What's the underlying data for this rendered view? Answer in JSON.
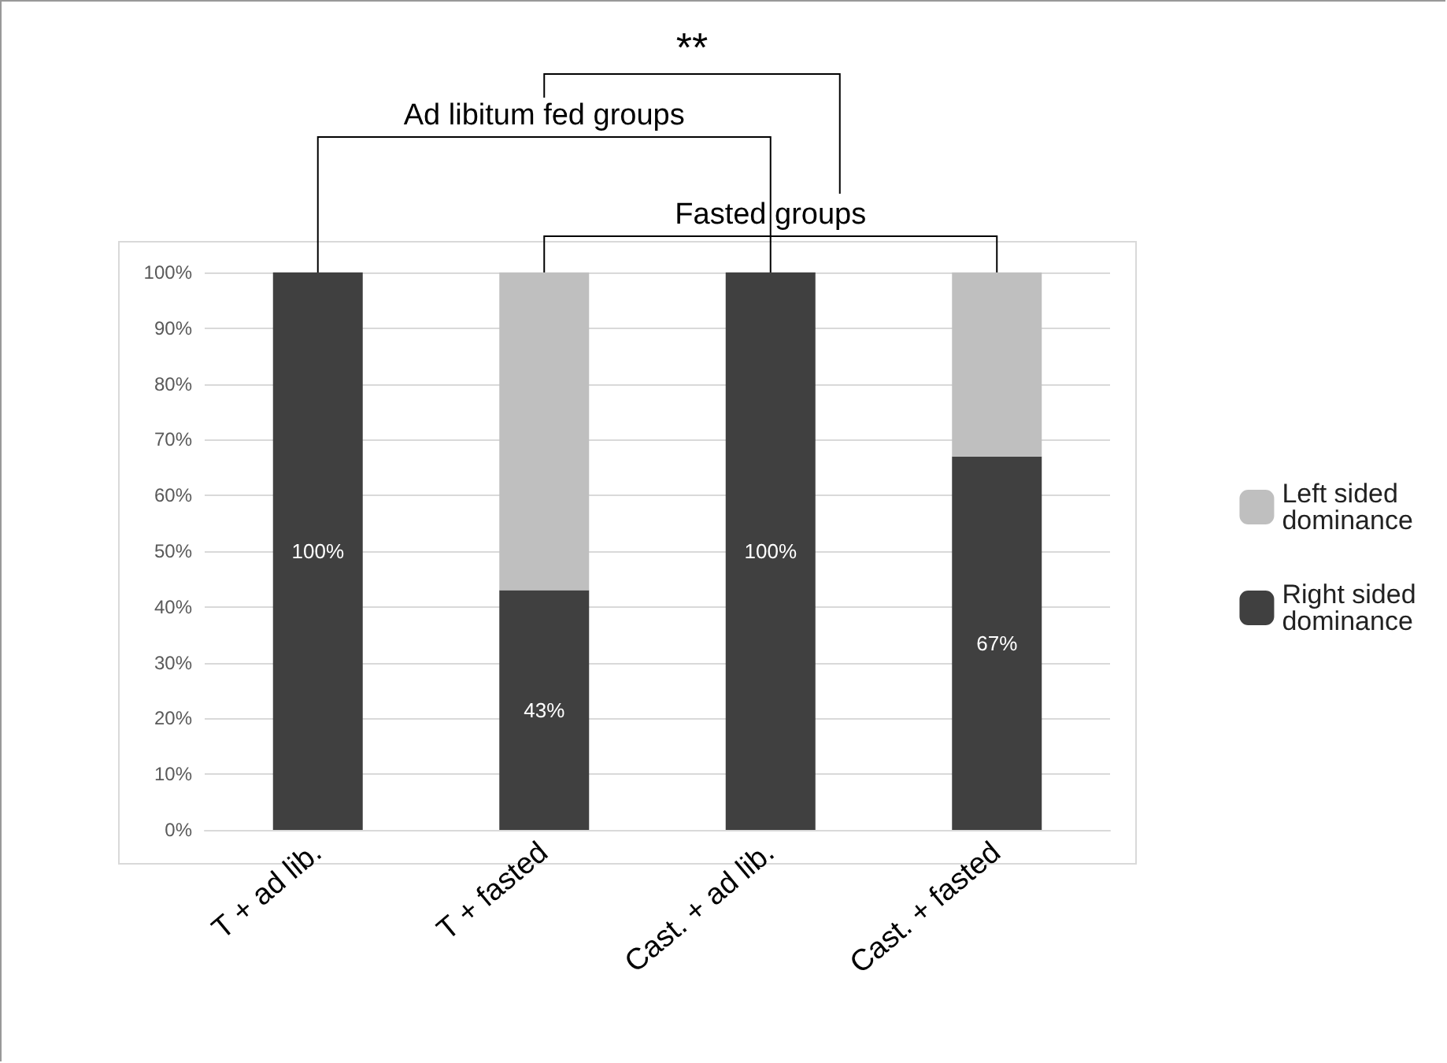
{
  "chart_data": {
    "type": "bar",
    "stacked": true,
    "categories": [
      "T + ad lib.",
      "T + fasted",
      "Cast. + ad lib.",
      "Cast. + fasted"
    ],
    "series": [
      {
        "name": "Right sided dominance",
        "color": "#404040",
        "values": [
          100,
          43,
          100,
          67
        ],
        "value_labels": [
          "100%",
          "43%",
          "100%",
          "67%"
        ]
      },
      {
        "name": "Left sided dominance",
        "color": "#bfbfbf",
        "values": [
          0,
          57,
          0,
          33
        ]
      }
    ],
    "ylim": [
      0,
      100
    ],
    "yticks": [
      {
        "value": 0,
        "label": "0%"
      },
      {
        "value": 10,
        "label": "10%"
      },
      {
        "value": 20,
        "label": "20%"
      },
      {
        "value": 30,
        "label": "30%"
      },
      {
        "value": 40,
        "label": "40%"
      },
      {
        "value": 50,
        "label": "50%"
      },
      {
        "value": 60,
        "label": "60%"
      },
      {
        "value": 70,
        "label": "70%"
      },
      {
        "value": 80,
        "label": "80%"
      },
      {
        "value": 90,
        "label": "90%"
      },
      {
        "value": 100,
        "label": "100%"
      }
    ],
    "grid": "y",
    "legend": "right",
    "annotations": [
      "**",
      "Ad libitum fed groups",
      "Fasted groups"
    ]
  }
}
